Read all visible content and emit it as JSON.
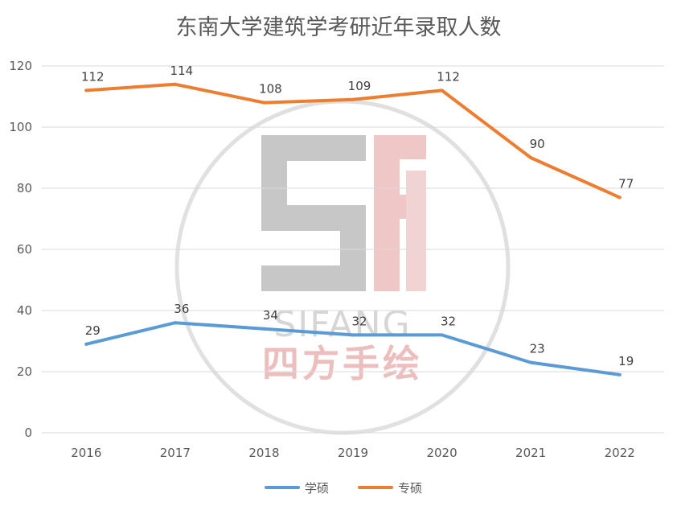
{
  "chart_data": {
    "type": "line",
    "title": "东南大学建筑学考研近年录取人数",
    "categories": [
      "2016",
      "2017",
      "2018",
      "2019",
      "2020",
      "2021",
      "2022"
    ],
    "ylim": [
      0,
      120
    ],
    "yticks": [
      0,
      20,
      40,
      60,
      80,
      100,
      120
    ],
    "grid": true,
    "legend_position": "bottom",
    "series": [
      {
        "name": "学硕",
        "values": [
          29,
          36,
          34,
          32,
          32,
          23,
          19
        ],
        "color": "#5b9bd5"
      },
      {
        "name": "专硕",
        "values": [
          112,
          114,
          108,
          109,
          112,
          90,
          77
        ],
        "color": "#ed7d31"
      }
    ]
  },
  "watermark": {
    "logo_letters": "SF",
    "brand_en": "SIFANG",
    "brand_cn": "四方手绘"
  }
}
